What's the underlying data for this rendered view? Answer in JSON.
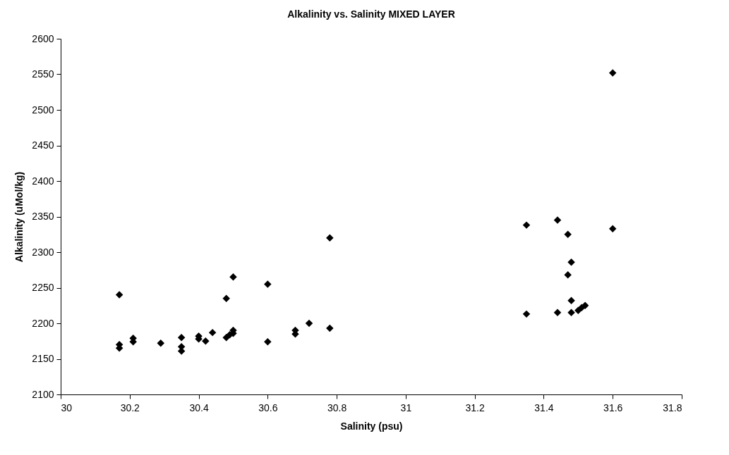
{
  "chart_data": {
    "type": "scatter",
    "title": "Alkalinity vs. Salinity MIXED LAYER",
    "xlabel": "Salinity (psu)",
    "ylabel": "Alkalinity (uMol/kg)",
    "x": [
      30.17,
      30.17,
      30.17,
      30.21,
      30.21,
      30.29,
      30.35,
      30.35,
      30.35,
      30.4,
      30.4,
      30.42,
      30.44,
      30.48,
      30.48,
      30.49,
      30.5,
      30.5,
      30.5,
      30.6,
      30.6,
      30.68,
      30.68,
      30.72,
      30.78,
      30.78,
      31.35,
      31.35,
      31.44,
      31.44,
      31.47,
      31.47,
      31.48,
      31.48,
      31.48,
      31.5,
      31.51,
      31.52,
      31.6,
      31.6
    ],
    "series": [
      {
        "color": "#000000",
        "values": [
          2240,
          2170,
          2165,
          2179,
          2174,
          2172,
          2180,
          2161,
          2167,
          2182,
          2178,
          2175,
          2187,
          2235,
          2180,
          2184,
          2190,
          2186,
          2265,
          2255,
          2174,
          2190,
          2185,
          2200,
          2320,
          2193,
          2338,
          2213,
          2345,
          2215,
          2325,
          2268,
          2286,
          2232,
          2215,
          2218,
          2222,
          2225,
          2552,
          2333
        ]
      }
    ],
    "xlim": [
      30,
      31.8
    ],
    "xticks": [
      30,
      30.2,
      30.4,
      30.6,
      30.8,
      31,
      31.2,
      31.4,
      31.6,
      31.8
    ],
    "ylim": [
      2100,
      2600
    ],
    "yticks": [
      2100,
      2150,
      2200,
      2250,
      2300,
      2350,
      2400,
      2450,
      2500,
      2550,
      2600
    ],
    "grid": false,
    "legend": false,
    "marker": "diamond"
  }
}
